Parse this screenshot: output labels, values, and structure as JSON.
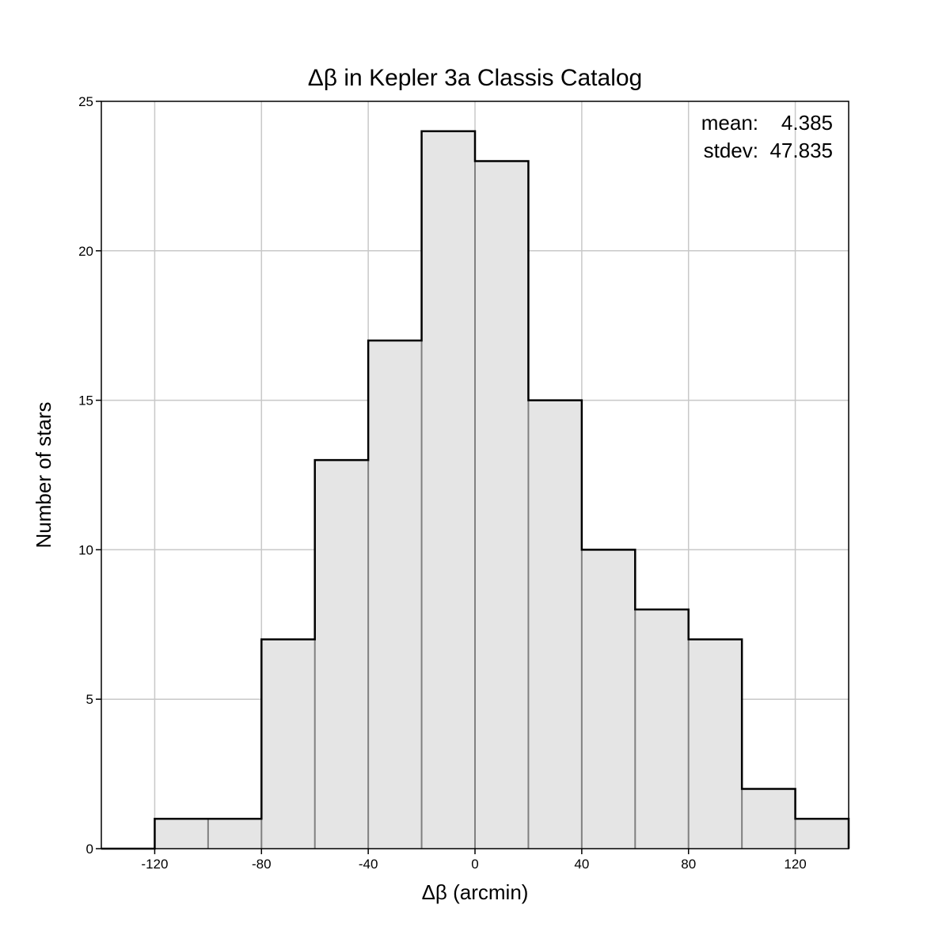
{
  "chart_data": {
    "type": "bar",
    "title": "Δβ in Kepler 3a Classis Catalog",
    "xlabel": "Δβ (arcmin)",
    "ylabel": "Number of stars",
    "xlim": [
      -140,
      140
    ],
    "ylim": [
      0,
      25
    ],
    "bin_width": 20,
    "bin_edges": [
      -120,
      -100,
      -80,
      -60,
      -40,
      -20,
      0,
      20,
      40,
      60,
      80,
      100,
      120,
      140
    ],
    "values": [
      1,
      1,
      7,
      13,
      17,
      24,
      23,
      15,
      10,
      8,
      7,
      2,
      1
    ],
    "xticks": [
      -120,
      -80,
      -40,
      0,
      40,
      80,
      120
    ],
    "xtick_labels": [
      "-120",
      "-80",
      "-40",
      "0",
      "40",
      "80",
      "120"
    ],
    "yticks": [
      0,
      5,
      10,
      15,
      20,
      25
    ],
    "ytick_labels": [
      "0",
      "5",
      "10",
      "15",
      "20",
      "25"
    ],
    "grid": true,
    "annotations": {
      "mean_label": "mean:",
      "mean_value": "4.385",
      "stdev_label": "stdev:",
      "stdev_value": "47.835"
    },
    "colors": {
      "bar_fill": "#e5e5e5",
      "bar_divider": "#808080",
      "outline": "#000000",
      "grid": "#c8c8c8"
    }
  }
}
